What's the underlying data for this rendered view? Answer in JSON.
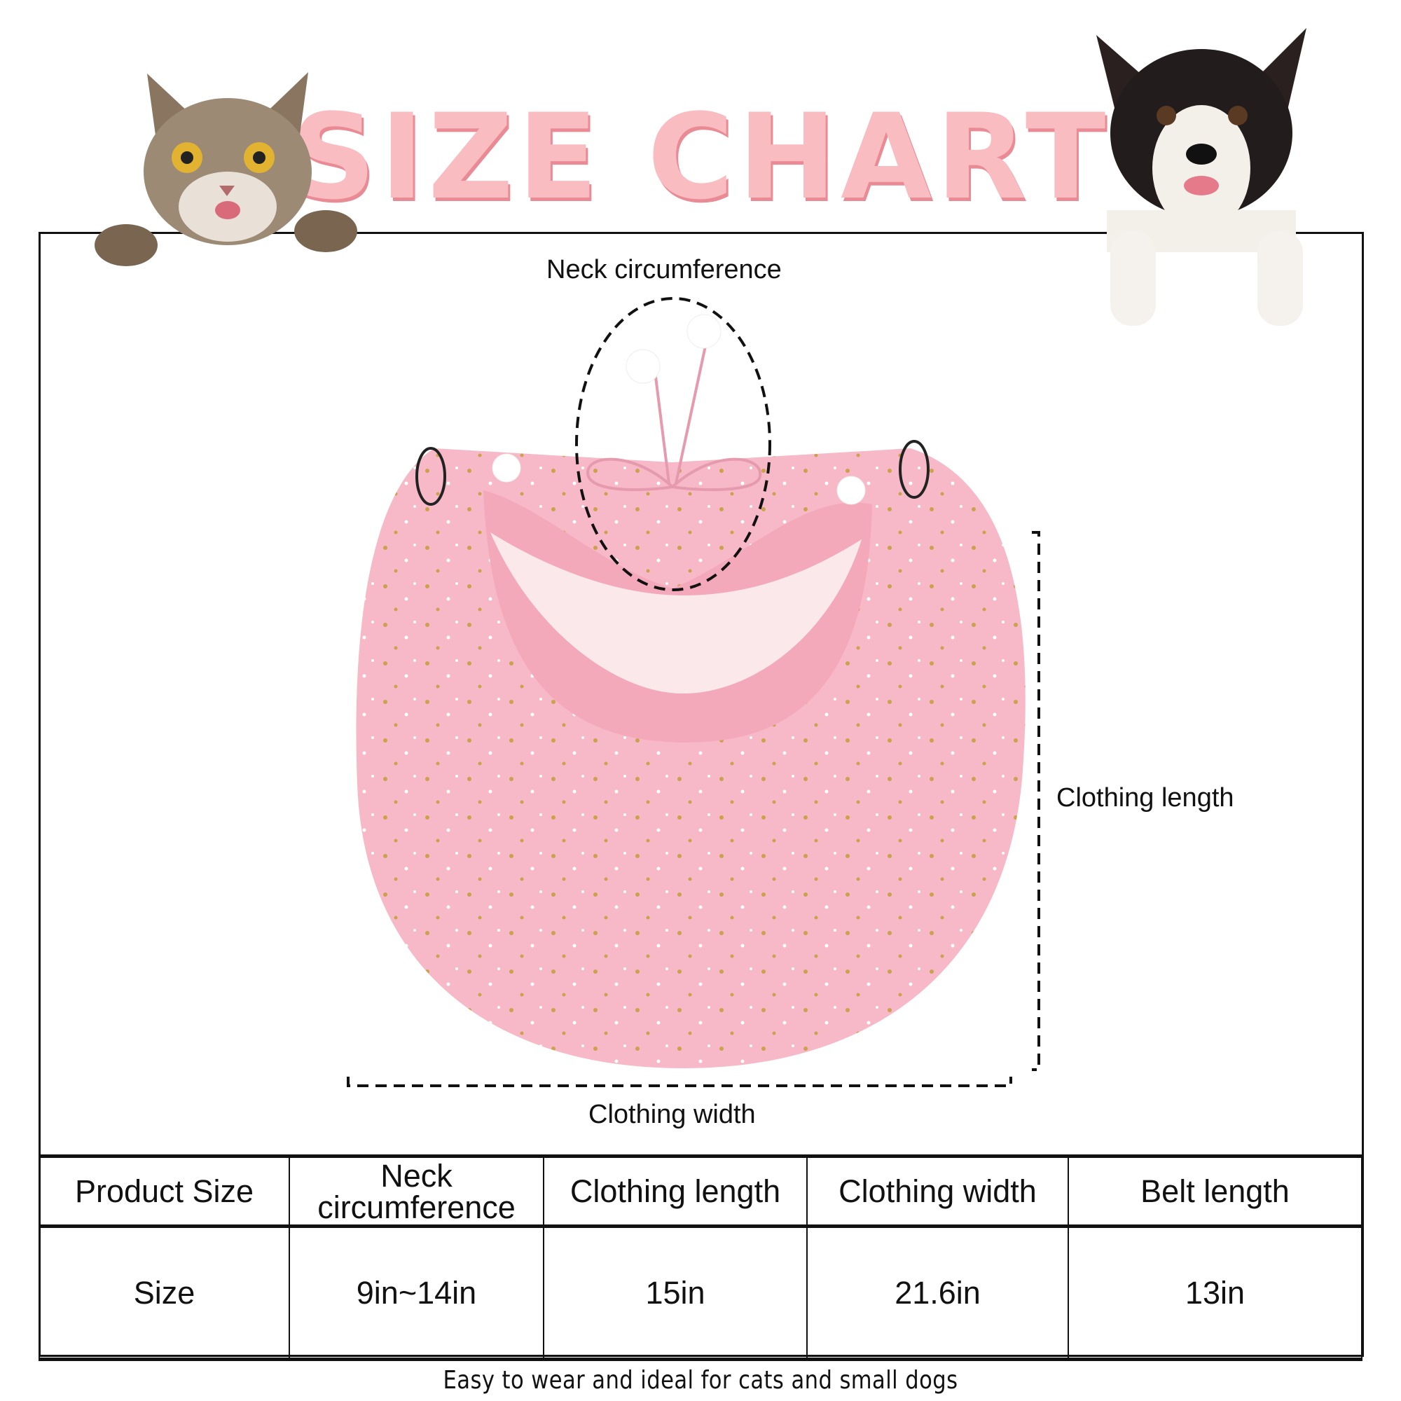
{
  "title": "SIZE CHART",
  "diagram": {
    "neck_label": "Neck circumference",
    "length_label": "Clothing length",
    "width_label": "Clothing width",
    "colors": {
      "title": "#f8bcc1",
      "bib": "#f7b9c8",
      "stars": "#c9a24a"
    }
  },
  "table": {
    "headers": [
      "Product Size",
      "Neck circumference",
      "Clothing length",
      "Clothing width",
      "Belt length"
    ],
    "row": [
      "Size",
      "9in~14in",
      "15in",
      "21.6in",
      "13in"
    ]
  },
  "footer": "Easy to wear and ideal for cats and small dogs"
}
